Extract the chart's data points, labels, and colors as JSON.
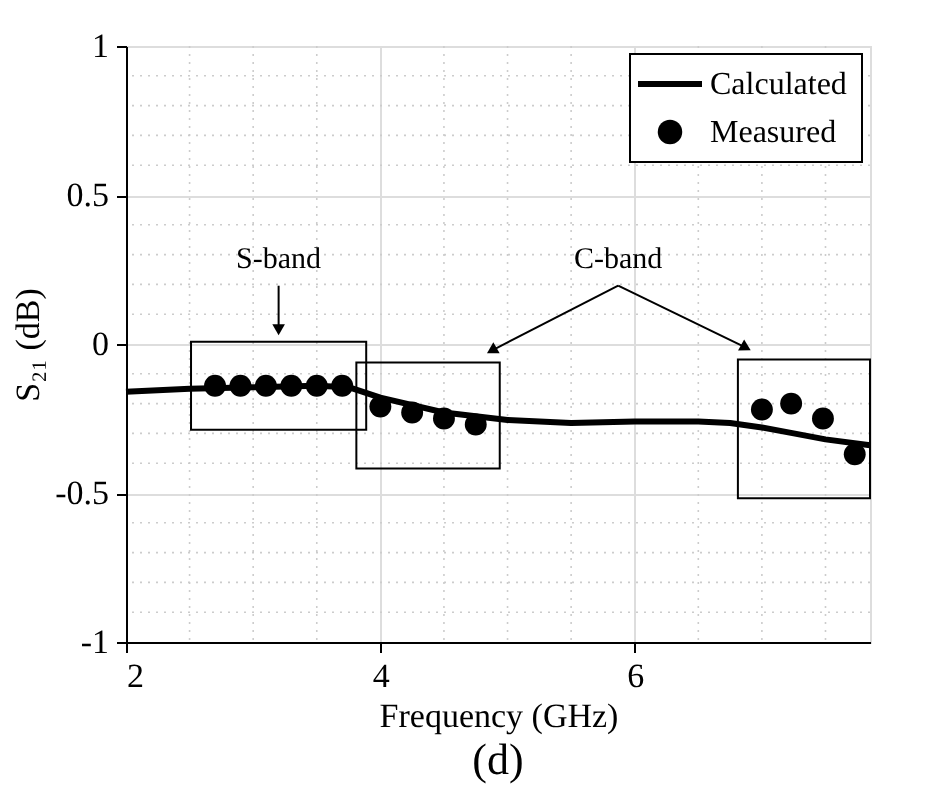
{
  "chart_data": {
    "type": "line",
    "xlabel": "Frequency (GHz)",
    "ylabel": "S₂₁ (dB)",
    "xlim": [
      2,
      7.85
    ],
    "xticks": [
      2,
      4,
      6
    ],
    "ylim": [
      -1,
      1
    ],
    "yticks": [
      -1,
      -0.5,
      0,
      0.5,
      1
    ],
    "grid": true,
    "legend": "top right",
    "series": [
      {
        "name": "Calculated",
        "color": "#000000",
        "marker": "none",
        "line_style": "solid",
        "x": [
          2,
          2.5,
          3,
          3.5,
          3.75,
          4,
          4.5,
          5,
          5.5,
          6,
          6.5,
          6.75,
          7,
          7.25,
          7.5,
          7.85
        ],
        "values": [
          -0.16,
          -0.15,
          -0.145,
          -0.14,
          -0.145,
          -0.18,
          -0.23,
          -0.255,
          -0.265,
          -0.26,
          -0.26,
          -0.265,
          -0.28,
          -0.3,
          -0.32,
          -0.34
        ]
      },
      {
        "name": "Measured",
        "type": "scatter",
        "color": "#000000",
        "marker": "circle",
        "x": [
          2.7,
          2.9,
          3.1,
          3.3,
          3.5,
          3.7,
          4.0,
          4.25,
          4.5,
          4.75,
          7.0,
          7.23,
          7.48,
          7.73
        ],
        "values": [
          -0.14,
          -0.14,
          -0.14,
          -0.14,
          -0.14,
          -0.14,
          -0.21,
          -0.23,
          -0.25,
          -0.27,
          -0.22,
          -0.2,
          -0.25,
          -0.37
        ]
      }
    ],
    "annotations": [
      "S-band",
      "C-band",
      "(d)"
    ]
  }
}
